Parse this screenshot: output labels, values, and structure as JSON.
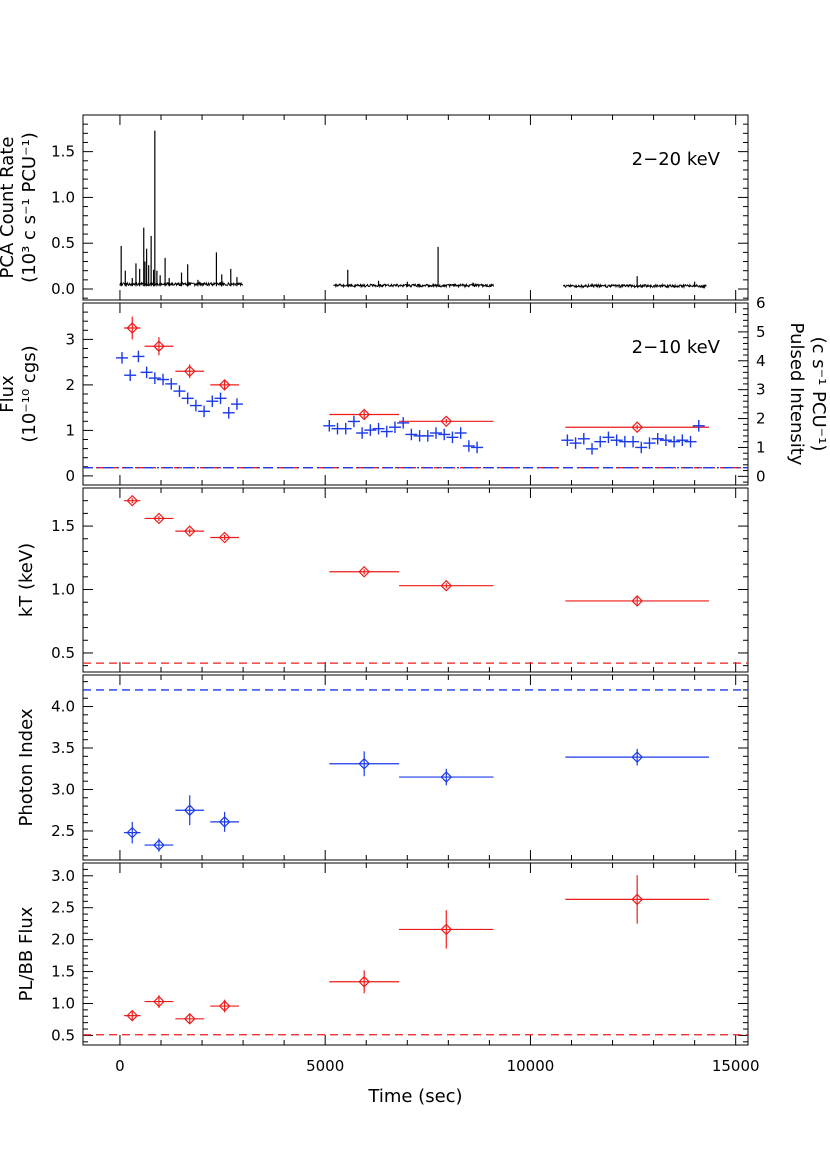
{
  "chart_data": {
    "type": "scatter",
    "xlabel": "Time (sec)",
    "xlim": [
      -900,
      15300
    ],
    "xticks": [
      "0",
      "5000",
      "10000",
      "15000"
    ],
    "colors": {
      "red": "#ee1c1c",
      "blue": "#1a3ae8",
      "black": "#000000"
    },
    "panels": [
      {
        "id": "countrate",
        "ylabel": [
          "PCA Count Rate",
          "(10³ c s⁻¹ PCU⁻¹)"
        ],
        "ylim": [
          -0.12,
          1.9
        ],
        "yticks": [
          0.0,
          0.5,
          1.0,
          1.5
        ],
        "yticklabels": [
          "0.0",
          "0.5",
          "1.0",
          "1.5"
        ],
        "annotation": "2−20 keV",
        "lightcurve_segments": [
          {
            "t0": 0,
            "t1": 3000,
            "level": 0.05
          },
          {
            "t0": 5200,
            "t1": 9100,
            "level": 0.035
          },
          {
            "t0": 10800,
            "t1": 14300,
            "level": 0.03
          }
        ],
        "spikes": [
          {
            "t": 30,
            "h": 0.47
          },
          {
            "t": 130,
            "h": 0.2
          },
          {
            "t": 300,
            "h": 0.12
          },
          {
            "t": 390,
            "h": 0.28
          },
          {
            "t": 480,
            "h": 0.22
          },
          {
            "t": 580,
            "h": 0.67
          },
          {
            "t": 610,
            "h": 0.3
          },
          {
            "t": 650,
            "h": 0.44
          },
          {
            "t": 700,
            "h": 0.26
          },
          {
            "t": 760,
            "h": 0.58
          },
          {
            "t": 820,
            "h": 0.21
          },
          {
            "t": 850,
            "h": 1.73
          },
          {
            "t": 900,
            "h": 0.2
          },
          {
            "t": 980,
            "h": 0.15
          },
          {
            "t": 1100,
            "h": 0.34
          },
          {
            "t": 1200,
            "h": 0.12
          },
          {
            "t": 1500,
            "h": 0.18
          },
          {
            "t": 1650,
            "h": 0.27
          },
          {
            "t": 1900,
            "h": 0.1
          },
          {
            "t": 2350,
            "h": 0.4
          },
          {
            "t": 2480,
            "h": 0.16
          },
          {
            "t": 2700,
            "h": 0.22
          },
          {
            "t": 2850,
            "h": 0.13
          },
          {
            "t": 5550,
            "h": 0.21
          },
          {
            "t": 6300,
            "h": 0.09
          },
          {
            "t": 7000,
            "h": 0.08
          },
          {
            "t": 7750,
            "h": 0.46
          },
          {
            "t": 8600,
            "h": 0.07
          },
          {
            "t": 11500,
            "h": 0.06
          },
          {
            "t": 12600,
            "h": 0.14
          },
          {
            "t": 14000,
            "h": 0.08
          }
        ]
      },
      {
        "id": "flux",
        "ylabel": [
          "Flux",
          "(10⁻¹⁰ cgs)"
        ],
        "ylim": [
          -0.2,
          3.8
        ],
        "yticks": [
          0,
          1,
          2,
          3
        ],
        "yticklabels": [
          "0",
          "1",
          "2",
          "3"
        ],
        "annotation": "2−10 keV",
        "right_axis": {
          "label": [
            "Pulsed Intensity",
            "(c s⁻¹ PCU⁻¹)"
          ],
          "ylim": [
            -0.3,
            6.0
          ],
          "yticks": [
            0,
            1,
            2,
            3,
            4,
            5,
            6
          ],
          "yticklabels": [
            "0",
            "1",
            "2",
            "3",
            "4",
            "5",
            "6"
          ]
        },
        "flux_points": {
          "color": "red",
          "x": [
            300,
            950,
            1700,
            2550,
            5950,
            7950,
            12600
          ],
          "xerr": [
            200,
            350,
            350,
            350,
            850,
            1150,
            1750
          ],
          "y": [
            3.25,
            2.85,
            2.3,
            2.0,
            1.35,
            1.2,
            1.07
          ],
          "yerr": [
            0.25,
            0.2,
            0.15,
            0.12,
            0.08,
            0.05,
            0.05
          ]
        },
        "pulsed_points": {
          "color": "blue",
          "x": [
            50,
            250,
            450,
            650,
            850,
            1050,
            1250,
            1450,
            1650,
            1850,
            2050,
            2250,
            2450,
            2650,
            2850,
            5100,
            5300,
            5500,
            5700,
            5900,
            6100,
            6300,
            6500,
            6700,
            6900,
            7100,
            7300,
            7500,
            7700,
            7900,
            8100,
            8300,
            8500,
            8700,
            10900,
            11100,
            11300,
            11500,
            11700,
            11900,
            12100,
            12300,
            12500,
            12700,
            12900,
            13100,
            13300,
            13500,
            13700,
            13900,
            14100
          ],
          "y": [
            4.1,
            3.5,
            4.15,
            3.6,
            3.4,
            3.35,
            3.2,
            2.95,
            2.7,
            2.45,
            2.25,
            2.6,
            2.7,
            2.2,
            2.5,
            1.75,
            1.65,
            1.65,
            1.9,
            1.5,
            1.6,
            1.65,
            1.55,
            1.7,
            1.85,
            1.45,
            1.4,
            1.4,
            1.5,
            1.45,
            1.35,
            1.5,
            1.05,
            1.0,
            1.25,
            1.15,
            1.3,
            0.95,
            1.2,
            1.35,
            1.25,
            1.2,
            1.2,
            1.0,
            1.15,
            1.3,
            1.25,
            1.2,
            1.25,
            1.2,
            1.75
          ],
          "err": 0.2
        },
        "hlines": [
          {
            "y": 0.18,
            "color": "red",
            "dash": "dash"
          },
          {
            "y": 0.18,
            "color": "blue",
            "dash": "dashdot"
          }
        ]
      },
      {
        "id": "kT",
        "ylabel": [
          "kT (keV)"
        ],
        "ylim": [
          0.35,
          1.8
        ],
        "yticks": [
          0.5,
          1.0,
          1.5
        ],
        "yticklabels": [
          "0.5",
          "1.0",
          "1.5"
        ],
        "points": {
          "color": "red",
          "x": [
            300,
            950,
            1700,
            2550,
            5950,
            7950,
            12600
          ],
          "xerr": [
            200,
            350,
            350,
            350,
            850,
            1150,
            1750
          ],
          "y": [
            1.7,
            1.56,
            1.46,
            1.41,
            1.14,
            1.03,
            0.91
          ],
          "yerr": [
            0.02,
            0.02,
            0.02,
            0.02,
            0.02,
            0.02,
            0.03
          ]
        },
        "hlines": [
          {
            "y": 0.42,
            "color": "red",
            "dash": "dash"
          }
        ]
      },
      {
        "id": "photonindex",
        "ylabel": [
          "Photon Index"
        ],
        "ylim": [
          2.15,
          4.38
        ],
        "yticks": [
          2.5,
          3.0,
          3.5,
          4.0
        ],
        "yticklabels": [
          "2.5",
          "3.0",
          "3.5",
          "4.0"
        ],
        "points": {
          "color": "blue",
          "x": [
            300,
            950,
            1700,
            2550,
            5950,
            7950,
            12600
          ],
          "xerr": [
            200,
            350,
            350,
            350,
            850,
            1150,
            1750
          ],
          "y": [
            2.48,
            2.33,
            2.75,
            2.61,
            3.31,
            3.15,
            3.39
          ],
          "yerr": [
            0.13,
            0.08,
            0.18,
            0.12,
            0.15,
            0.1,
            0.1
          ]
        },
        "hlines": [
          {
            "y": 4.2,
            "color": "blue",
            "dash": "dash"
          }
        ]
      },
      {
        "id": "plbbflux",
        "ylabel": [
          "PL/BB Flux"
        ],
        "ylim": [
          0.35,
          3.2
        ],
        "yticks": [
          0.5,
          1.0,
          1.5,
          2.0,
          2.5,
          3.0
        ],
        "yticklabels": [
          "0.5",
          "1.0",
          "1.5",
          "2.0",
          "2.5",
          "3.0"
        ],
        "points": {
          "color": "red",
          "x": [
            300,
            950,
            1700,
            2550,
            5950,
            7950,
            12600
          ],
          "xerr": [
            200,
            350,
            350,
            350,
            850,
            1150,
            1750
          ],
          "y": [
            0.81,
            1.03,
            0.76,
            0.96,
            1.34,
            2.16,
            2.63
          ],
          "yerr": [
            0.08,
            0.1,
            0.07,
            0.1,
            0.18,
            0.3,
            0.38
          ]
        },
        "hlines": [
          {
            "y": 0.51,
            "color": "red",
            "dash": "dash"
          }
        ]
      }
    ]
  }
}
